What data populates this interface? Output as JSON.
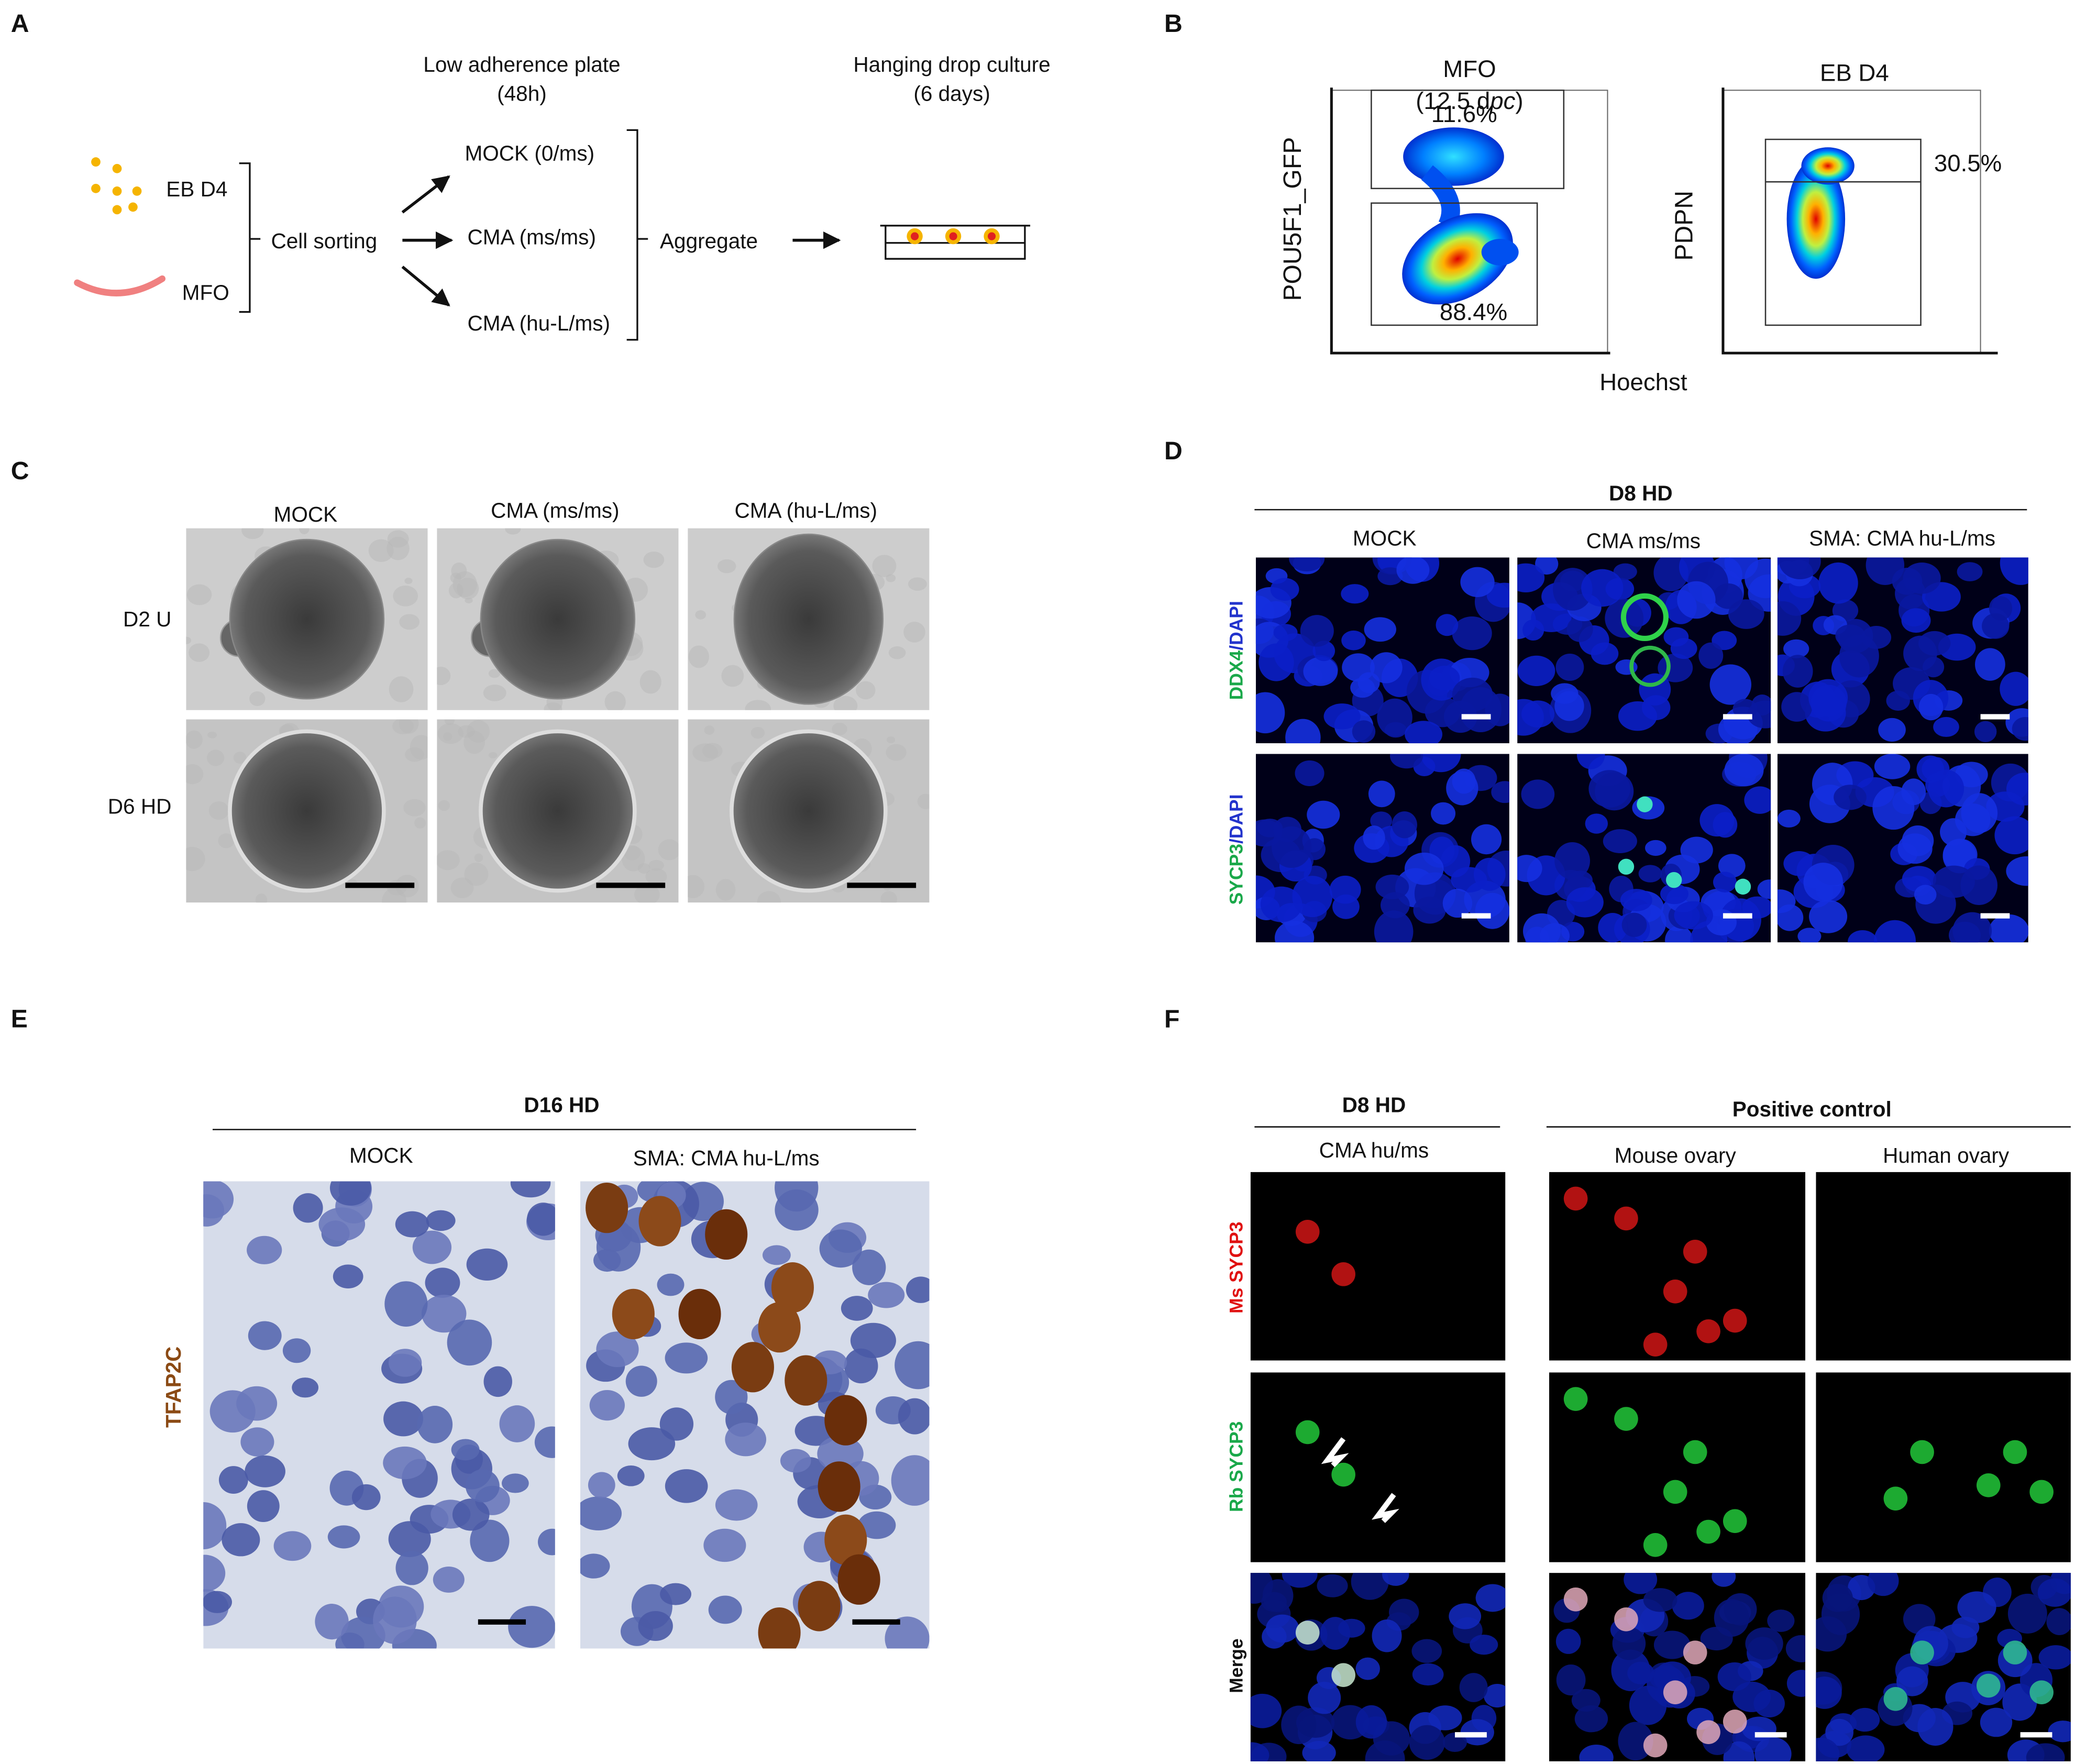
{
  "panel_a": {
    "letter": "A",
    "eb": "EB D4",
    "mfo": "MFO",
    "sorting": "Cell sorting",
    "step1": "Low adherence plate",
    "step1_time": "(48h)",
    "conditions": [
      "MOCK (0/ms)",
      "CMA (ms/ms)",
      "CMA (hu-L/ms)"
    ],
    "aggregate": "Aggregate",
    "step2": "Hanging drop culture",
    "step2_time": "(6 days)"
  },
  "panel_b": {
    "letter": "B",
    "plot1_title": "MFO",
    "plot1_subtitle": [
      "(12.5 d",
      "pc",
      ")"
    ],
    "plot1_ylabel": "POU5F1_GFP",
    "gate_top": "11.6%",
    "gate_bottom": "88.4%",
    "plot2_title": "EB D4",
    "plot2_ylabel": "PDPN",
    "plot2_gate": "30.5%",
    "xlabel": "Hoechst"
  },
  "panel_c": {
    "letter": "C",
    "columns": [
      "MOCK",
      "CMA (ms/ms)",
      "CMA (hu-L/ms)"
    ],
    "rows": [
      "D2 U",
      "D6 HD"
    ]
  },
  "panel_d": {
    "letter": "D",
    "header": "D8 HD",
    "columns": [
      "MOCK",
      "CMA ms/ms",
      "SMA: CMA hu-L/ms"
    ],
    "rows": [
      [
        "DDX4",
        "/DAPI"
      ],
      [
        "SYCP3",
        "/DAPI"
      ]
    ]
  },
  "panel_e": {
    "letter": "E",
    "header": "D16 HD",
    "columns": [
      "MOCK",
      "SMA: CMA hu-L/ms"
    ],
    "row_label": "TFAP2C"
  },
  "panel_f": {
    "letter": "F",
    "group1": "D8 HD",
    "group1_columns": [
      "CMA hu/ms"
    ],
    "group2": "Positive control",
    "group2_columns": [
      "Mouse ovary",
      "Human ovary"
    ],
    "rows": [
      "Ms SYCP3",
      "Rb SYCP3",
      "Merge"
    ]
  }
}
